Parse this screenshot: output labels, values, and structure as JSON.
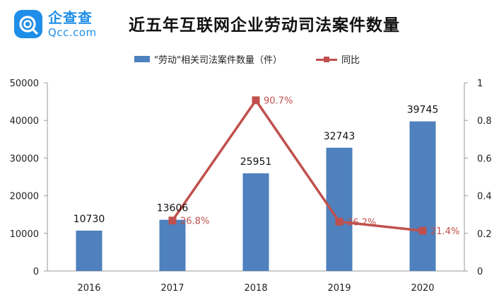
{
  "brand": {
    "name": "企查查",
    "domain": "Qcc.com",
    "color": "#1f8ee8"
  },
  "chart_data": {
    "type": "bar",
    "title": "近五年互联网企业劳动司法案件数量",
    "categories": [
      "2016",
      "2017",
      "2018",
      "2019",
      "2020"
    ],
    "series": [
      {
        "name": "\"劳动\"相关司法案件数量（件）",
        "type": "bar",
        "axis": "left",
        "color": "#4e81bd",
        "values": [
          10730,
          13606,
          25951,
          32743,
          39745
        ],
        "labels": [
          "10730",
          "13606",
          "25951",
          "32743",
          "39745"
        ]
      },
      {
        "name": "同比",
        "type": "line",
        "axis": "right",
        "color": "#c0504d",
        "x": [
          "2017",
          "2018",
          "2019",
          "2020"
        ],
        "values": [
          0.268,
          0.907,
          0.262,
          0.214
        ],
        "labels": [
          "26.8%",
          "90.7%",
          "26.2%",
          "21.4%"
        ]
      }
    ],
    "ylim": [
      0,
      50000
    ],
    "y_ticks": [
      "0",
      "10000",
      "20000",
      "30000",
      "40000",
      "50000"
    ],
    "y2lim": [
      0,
      1
    ],
    "y2_ticks": [
      "0",
      "0.2",
      "0.4",
      "0.6",
      "0.8",
      "1"
    ],
    "legend_position": "top",
    "grid": false
  }
}
